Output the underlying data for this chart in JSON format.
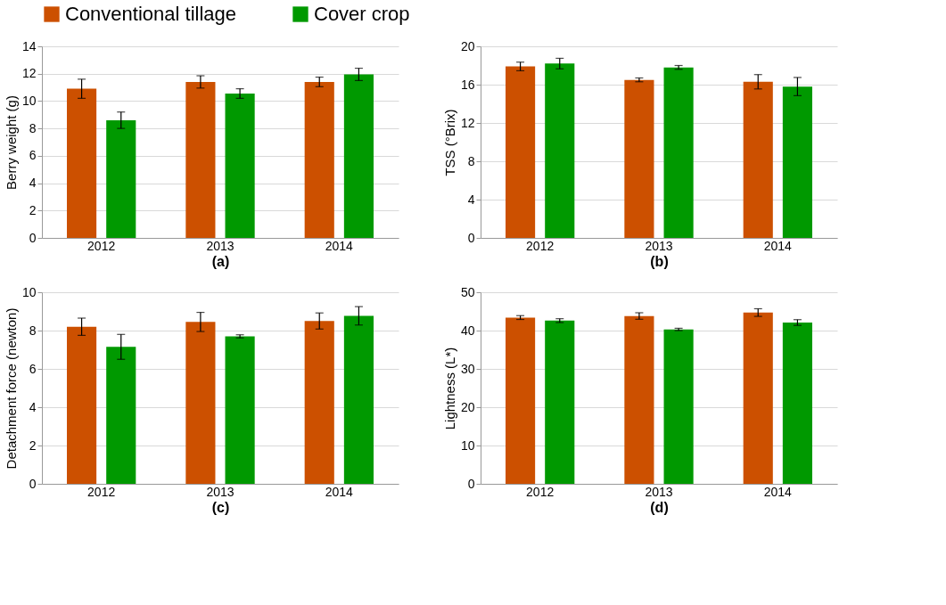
{
  "chart_data": [
    {
      "type": "bar",
      "categories": [
        "2012",
        "2013",
        "2014"
      ],
      "xlabel": "(a)",
      "ylabel": "Berry weight (g)",
      "ylim": [
        0,
        14
      ],
      "yticks": [
        0,
        2,
        4,
        6,
        8,
        10,
        12,
        14
      ],
      "grid": "y",
      "legend": "top",
      "series": [
        {
          "name": "Conventional tillage",
          "color": "#cc5000",
          "values": [
            10.9,
            11.4,
            11.4
          ],
          "errors": [
            0.7,
            0.45,
            0.35
          ]
        },
        {
          "name": "Cover crop",
          "color": "#009900",
          "values": [
            8.6,
            10.55,
            11.95
          ],
          "errors": [
            0.6,
            0.35,
            0.45
          ]
        }
      ]
    },
    {
      "type": "bar",
      "categories": [
        "2012",
        "2013",
        "2014"
      ],
      "xlabel": "(b)",
      "ylabel": "TSS (°Brix)",
      "ylim": [
        0,
        20
      ],
      "yticks": [
        0,
        4,
        8,
        12,
        16,
        20
      ],
      "grid": "y",
      "legend": "top",
      "series": [
        {
          "name": "Conventional tillage",
          "color": "#cc5000",
          "values": [
            17.9,
            16.5,
            16.3
          ],
          "errors": [
            0.45,
            0.2,
            0.75
          ]
        },
        {
          "name": "Cover crop",
          "color": "#009900",
          "values": [
            18.2,
            17.8,
            15.8
          ],
          "errors": [
            0.55,
            0.2,
            0.95
          ]
        }
      ]
    },
    {
      "type": "bar",
      "categories": [
        "2012",
        "2013",
        "2014"
      ],
      "xlabel": "(c)",
      "ylabel": "Detachment force (newton)",
      "ylim": [
        0,
        10
      ],
      "yticks": [
        0,
        2,
        4,
        6,
        8,
        10
      ],
      "grid": "y",
      "legend": "top",
      "series": [
        {
          "name": "Conventional tillage",
          "color": "#cc5000",
          "values": [
            8.2,
            8.45,
            8.5
          ],
          "errors": [
            0.45,
            0.5,
            0.42
          ]
        },
        {
          "name": "Cover crop",
          "color": "#009900",
          "values": [
            7.15,
            7.7,
            8.77
          ],
          "errors": [
            0.65,
            0.08,
            0.48
          ]
        }
      ]
    },
    {
      "type": "bar",
      "categories": [
        "2012",
        "2013",
        "2014"
      ],
      "xlabel": "(d)",
      "ylabel": "Lightness (L*)",
      "ylim": [
        0,
        50
      ],
      "yticks": [
        0,
        10,
        20,
        30,
        40,
        50
      ],
      "grid": "y",
      "legend": "top",
      "series": [
        {
          "name": "Conventional tillage",
          "color": "#cc5000",
          "values": [
            43.4,
            43.8,
            44.7
          ],
          "errors": [
            0.5,
            0.85,
            1.0
          ]
        },
        {
          "name": "Cover crop",
          "color": "#009900",
          "values": [
            42.6,
            40.3,
            42.1
          ],
          "errors": [
            0.5,
            0.3,
            0.75
          ]
        }
      ]
    }
  ]
}
